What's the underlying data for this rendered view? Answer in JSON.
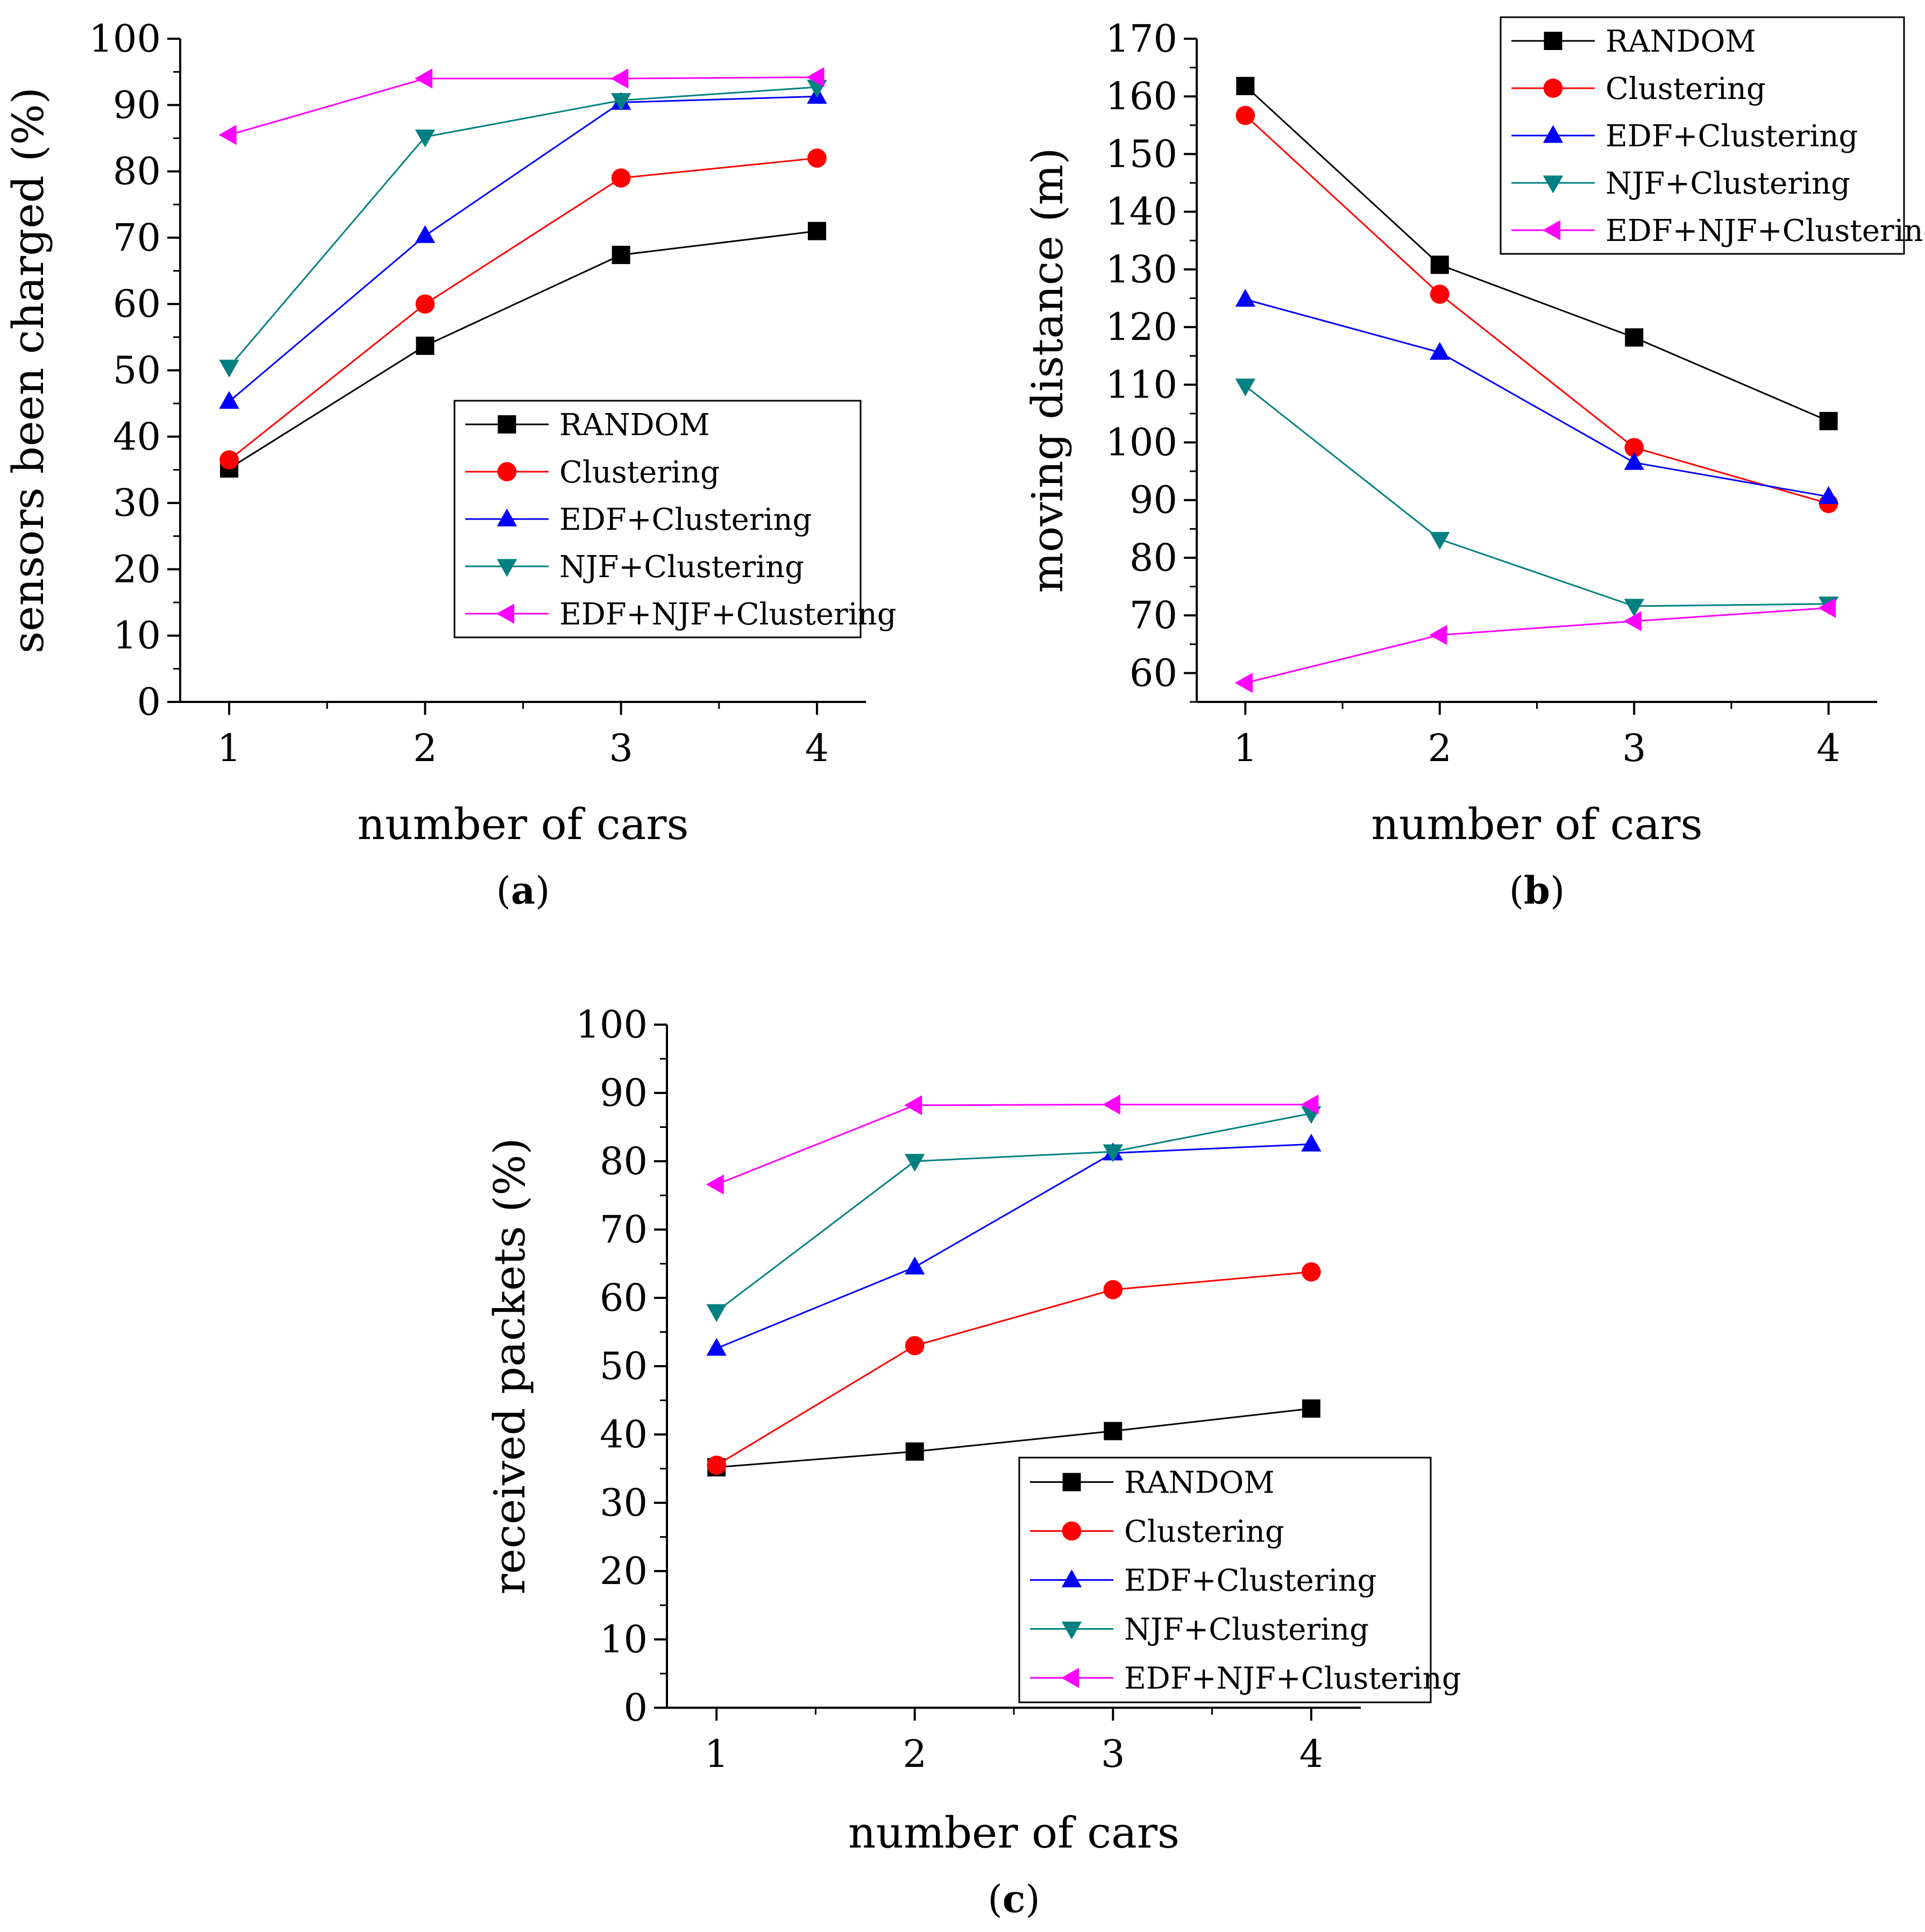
{
  "figure_labels": [
    "(a)",
    "(b)",
    "(c)"
  ],
  "legend_labels": [
    "RANDOM",
    "Clustering",
    "EDF+Clustering",
    "NJF+Clustering",
    "EDF+NJF+Clustering"
  ],
  "colors": {
    "RANDOM": "#000000",
    "Clustering": "#ff0000",
    "EDF+Clustering": "#0000ff",
    "NJF+Clustering": "#008080",
    "EDF+NJF+Clustering": "#ff00ff"
  },
  "marker_shapes": {
    "RANDOM": "square",
    "Clustering": "circle",
    "EDF+Clustering": "triangle-up",
    "NJF+Clustering": "triangle-down",
    "EDF+NJF+Clustering": "triangle-left"
  },
  "chart_data": [
    {
      "id": "a",
      "type": "line",
      "caption": "(a)",
      "title": "",
      "xlabel": "number of cars",
      "ylabel": "sensors been charged (%)",
      "x": [
        1,
        2,
        3,
        4
      ],
      "xticks": [
        "1",
        "2",
        "3",
        "4"
      ],
      "ylim": [
        0,
        100
      ],
      "yticks": [
        "0",
        "10",
        "20",
        "30",
        "40",
        "50",
        "60",
        "70",
        "80",
        "90",
        "100"
      ],
      "legend_position": "lower-right",
      "series": [
        {
          "name": "RANDOM",
          "values": [
            35.2,
            53.7,
            67.4,
            71.0
          ]
        },
        {
          "name": "Clustering",
          "values": [
            36.5,
            60.0,
            79.0,
            82.0
          ]
        },
        {
          "name": "EDF+Clustering",
          "values": [
            45.3,
            70.3,
            90.4,
            91.3
          ]
        },
        {
          "name": "NJF+Clustering",
          "values": [
            50.5,
            85.2,
            90.7,
            92.7
          ]
        },
        {
          "name": "EDF+NJF+Clustering",
          "values": [
            85.5,
            94.0,
            94.0,
            94.2
          ]
        }
      ]
    },
    {
      "id": "b",
      "type": "line",
      "caption": "(b)",
      "title": "",
      "xlabel": "number of cars",
      "ylabel": "moving distance (m)",
      "x": [
        1,
        2,
        3,
        4
      ],
      "xticks": [
        "1",
        "2",
        "3",
        "4"
      ],
      "ylim": [
        55,
        170
      ],
      "yticks": [
        "60",
        "70",
        "80",
        "90",
        "100",
        "110",
        "120",
        "130",
        "140",
        "150",
        "160",
        "170"
      ],
      "legend_position": "top-right",
      "series": [
        {
          "name": "RANDOM",
          "values": [
            161.8,
            130.8,
            118.2,
            103.7
          ]
        },
        {
          "name": "Clustering",
          "values": [
            156.7,
            125.7,
            99.1,
            89.4
          ]
        },
        {
          "name": "EDF+Clustering",
          "values": [
            124.8,
            115.6,
            96.5,
            90.6
          ]
        },
        {
          "name": "NJF+Clustering",
          "values": [
            109.8,
            83.2,
            71.6,
            72.0
          ]
        },
        {
          "name": "EDF+NJF+Clustering",
          "values": [
            58.3,
            66.6,
            69.0,
            71.3
          ]
        }
      ]
    },
    {
      "id": "c",
      "type": "line",
      "caption": "(c)",
      "title": "",
      "xlabel": "number of cars",
      "ylabel": "received packets (%)",
      "x": [
        1,
        2,
        3,
        4
      ],
      "xticks": [
        "1",
        "2",
        "3",
        "4"
      ],
      "ylim": [
        0,
        100
      ],
      "yticks": [
        "0",
        "10",
        "20",
        "30",
        "40",
        "50",
        "60",
        "70",
        "80",
        "90",
        "100"
      ],
      "legend_position": "lower-right",
      "series": [
        {
          "name": "RANDOM",
          "values": [
            35.2,
            37.5,
            40.5,
            43.8
          ]
        },
        {
          "name": "Clustering",
          "values": [
            35.5,
            53.0,
            61.2,
            63.8
          ]
        },
        {
          "name": "EDF+Clustering",
          "values": [
            52.6,
            64.5,
            81.2,
            82.5
          ]
        },
        {
          "name": "NJF+Clustering",
          "values": [
            58.0,
            80.0,
            81.4,
            87.0
          ]
        },
        {
          "name": "EDF+NJF+Clustering",
          "values": [
            76.6,
            88.2,
            88.3,
            88.3
          ]
        }
      ]
    }
  ]
}
